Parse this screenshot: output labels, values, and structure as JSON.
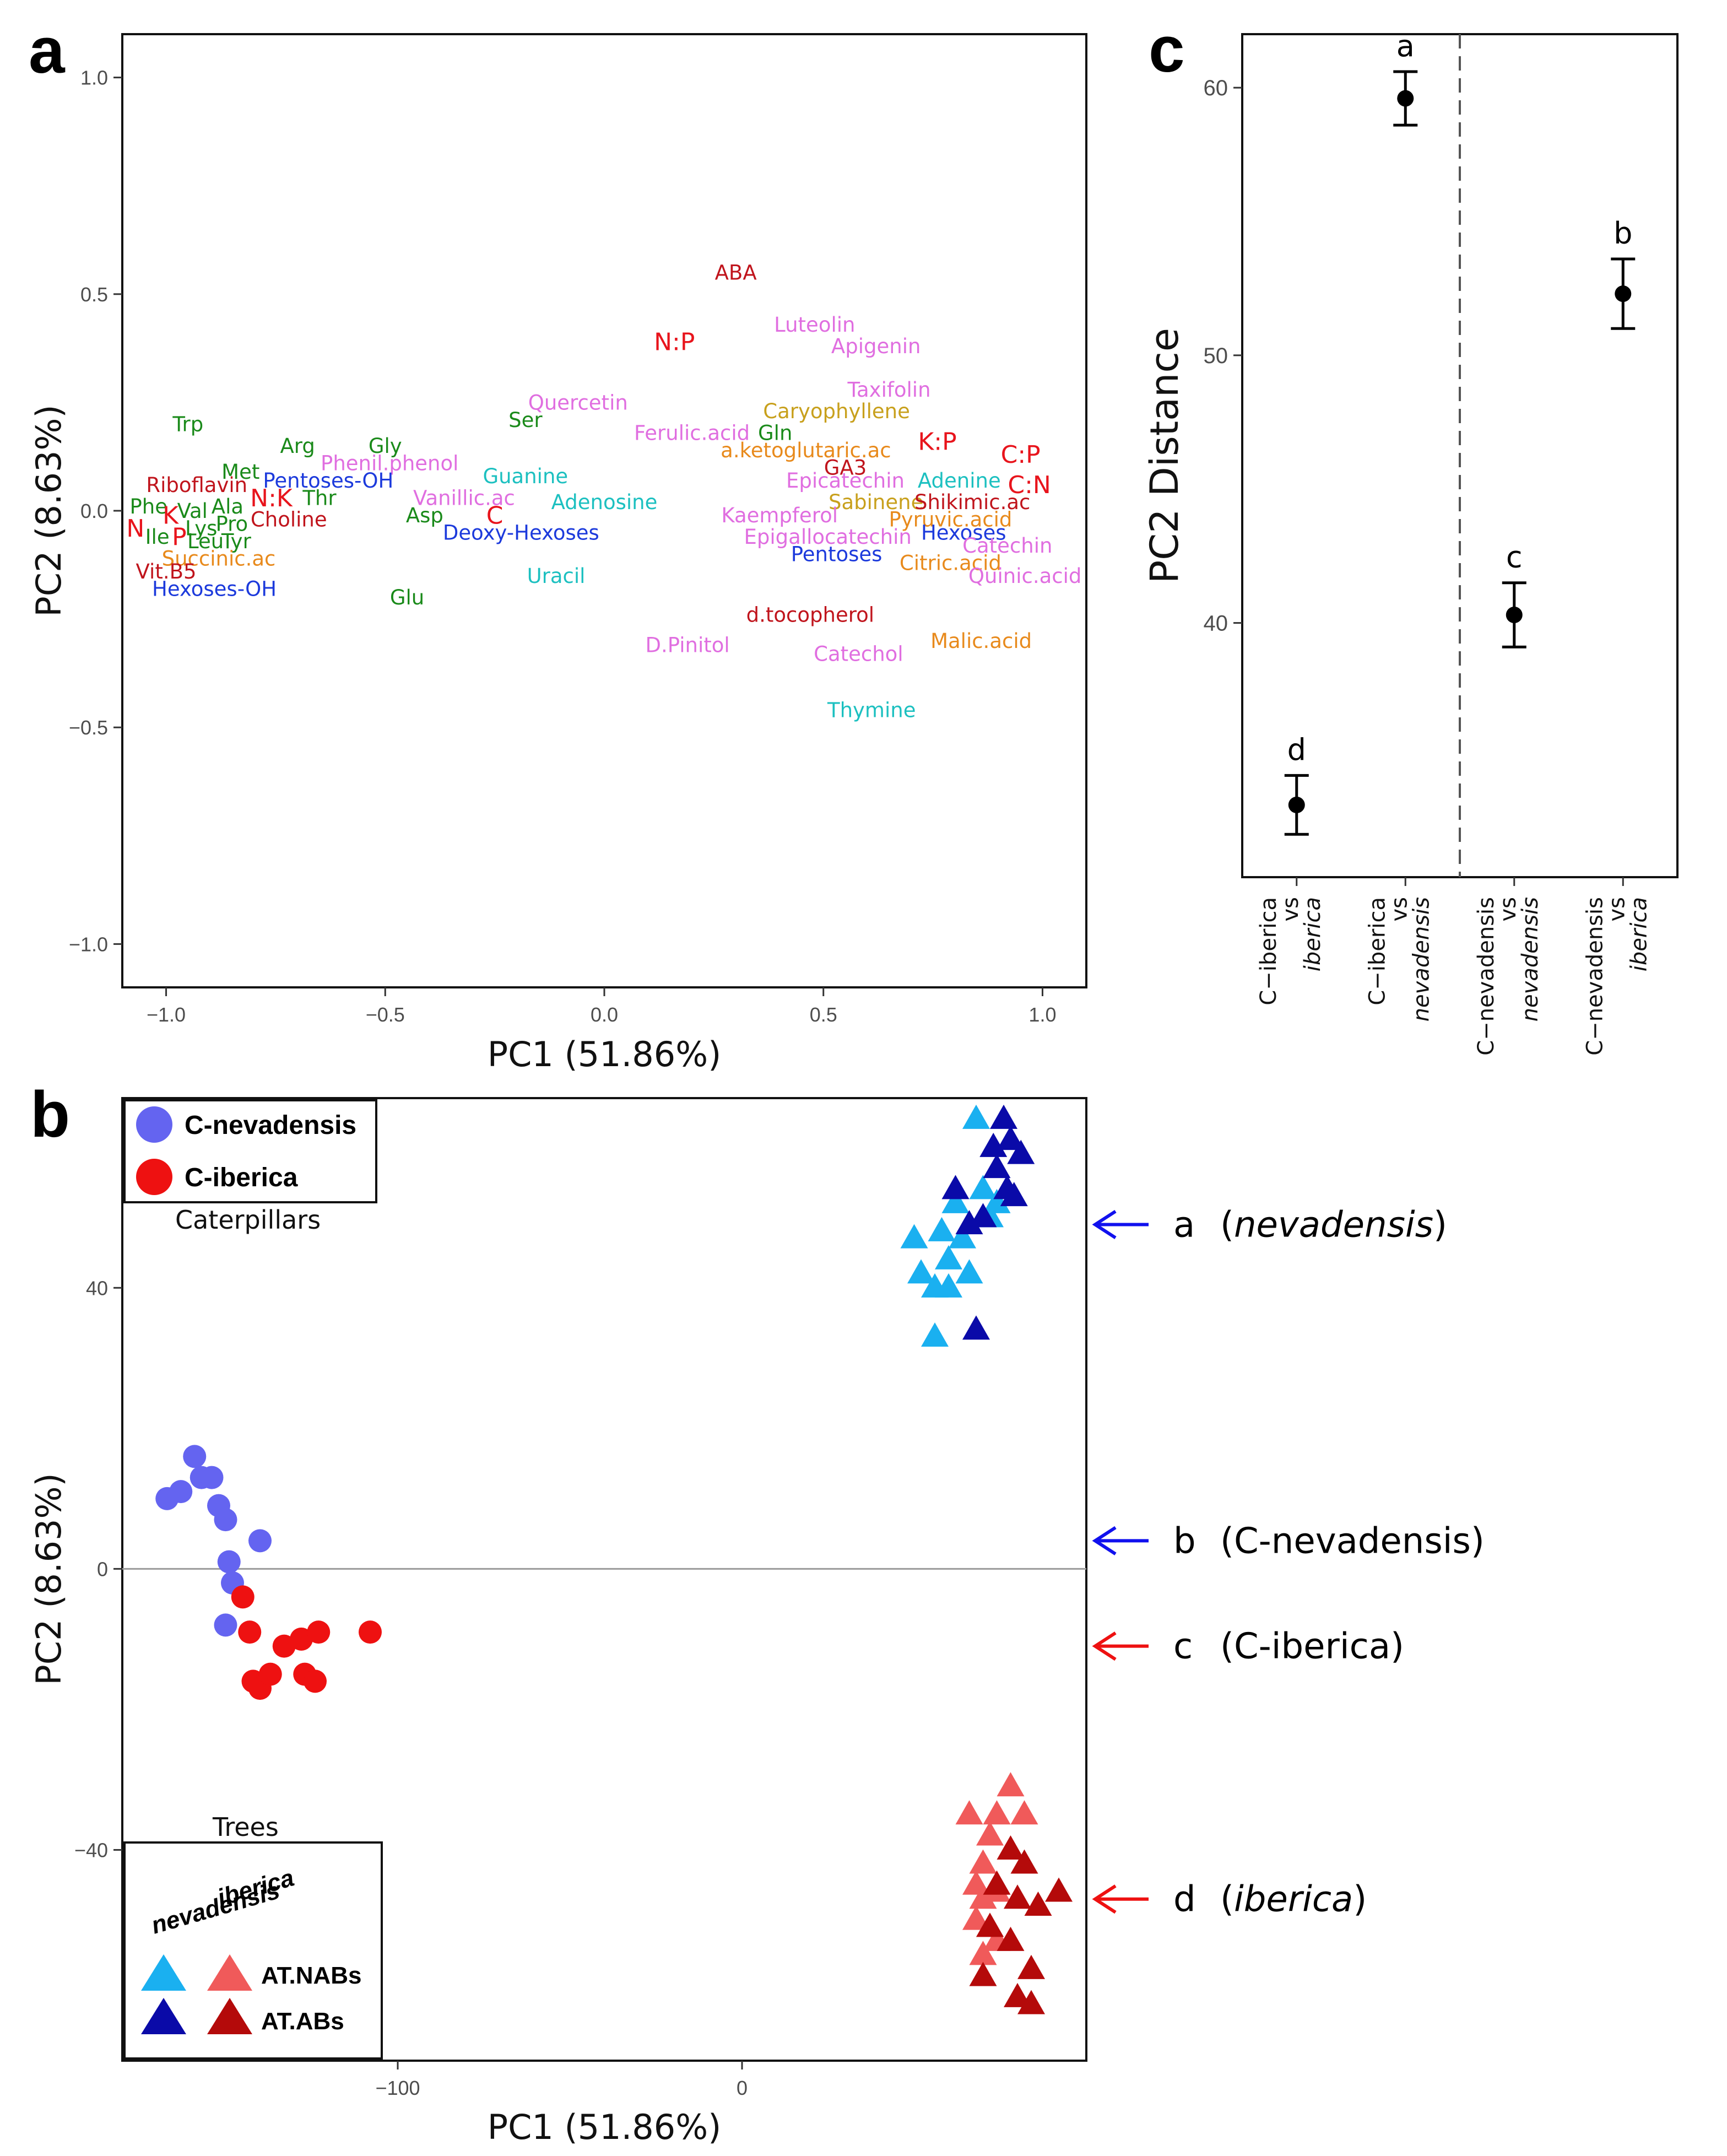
{
  "panels": {
    "a": "a",
    "b": "b",
    "c": "c"
  },
  "chart_data": [
    {
      "id": "a",
      "type": "scatter",
      "title": "",
      "xlabel": "PC1 (51.86%)",
      "ylabel": "PC2 (8.63%)",
      "xlim": [
        -1.1,
        1.1
      ],
      "ylim": [
        -1.1,
        1.1
      ],
      "xticks": [
        -1.0,
        -0.5,
        0.0,
        0.5,
        1.0
      ],
      "yticks": [
        -1.0,
        -0.5,
        0.0,
        0.5,
        1.0
      ],
      "xtick_labels": [
        "−1.0",
        "−0.5",
        "0.0",
        "0.5",
        "1.0"
      ],
      "ytick_labels": [
        "−1.0",
        "−0.5",
        "0.0",
        "0.5",
        "1.0"
      ],
      "colors": {
        "amino": "#1a8a1a",
        "nutrient": "#e8141c",
        "vitamin": "#c0141c",
        "organic": "#e88a1c",
        "sugar": "#1c3adc",
        "nucleo": "#1cc0c0",
        "phenol": "#e06ee0",
        "terpene": "#c8a01c",
        "hormone": "#c0141c"
      },
      "labels": [
        {
          "text": "ABA",
          "x": 0.3,
          "y": 0.55,
          "group": "hormone"
        },
        {
          "text": "Luteolin",
          "x": 0.48,
          "y": 0.43,
          "group": "phenol"
        },
        {
          "text": "N:P",
          "x": 0.16,
          "y": 0.39,
          "group": "nutrient"
        },
        {
          "text": "Apigenin",
          "x": 0.62,
          "y": 0.38,
          "group": "phenol"
        },
        {
          "text": "Taxifolin",
          "x": 0.65,
          "y": 0.28,
          "group": "phenol"
        },
        {
          "text": "Quercetin",
          "x": -0.06,
          "y": 0.25,
          "group": "phenol"
        },
        {
          "text": "Caryophyllene",
          "x": 0.53,
          "y": 0.23,
          "group": "terpene"
        },
        {
          "text": "Ser",
          "x": -0.18,
          "y": 0.21,
          "group": "amino"
        },
        {
          "text": "Ferulic.acid",
          "x": 0.2,
          "y": 0.18,
          "group": "phenol"
        },
        {
          "text": "Gln",
          "x": 0.39,
          "y": 0.18,
          "group": "amino"
        },
        {
          "text": "Trp",
          "x": -0.95,
          "y": 0.2,
          "group": "amino"
        },
        {
          "text": "a.ketoglutaric.ac",
          "x": 0.46,
          "y": 0.14,
          "group": "organic"
        },
        {
          "text": "K:P",
          "x": 0.76,
          "y": 0.16,
          "group": "nutrient"
        },
        {
          "text": "Arg",
          "x": -0.7,
          "y": 0.15,
          "group": "amino"
        },
        {
          "text": "Gly",
          "x": -0.5,
          "y": 0.15,
          "group": "amino"
        },
        {
          "text": "C:P",
          "x": 0.95,
          "y": 0.13,
          "group": "nutrient"
        },
        {
          "text": "GA3",
          "x": 0.55,
          "y": 0.1,
          "group": "hormone"
        },
        {
          "text": "Phenil.phenol",
          "x": -0.49,
          "y": 0.11,
          "group": "phenol"
        },
        {
          "text": "Met",
          "x": -0.83,
          "y": 0.09,
          "group": "amino"
        },
        {
          "text": "Guanine",
          "x": -0.18,
          "y": 0.08,
          "group": "nucleo"
        },
        {
          "text": "Pentoses-OH",
          "x": -0.63,
          "y": 0.07,
          "group": "sugar"
        },
        {
          "text": "Epicatechin",
          "x": 0.55,
          "y": 0.07,
          "group": "phenol"
        },
        {
          "text": "Adenine",
          "x": 0.81,
          "y": 0.07,
          "group": "nucleo"
        },
        {
          "text": "Riboflavin",
          "x": -0.93,
          "y": 0.06,
          "group": "vitamin"
        },
        {
          "text": "C:N",
          "x": 0.97,
          "y": 0.06,
          "group": "nutrient"
        },
        {
          "text": "N:K",
          "x": -0.76,
          "y": 0.03,
          "group": "nutrient"
        },
        {
          "text": "Thr",
          "x": -0.65,
          "y": 0.03,
          "group": "amino"
        },
        {
          "text": "Vanillic.ac",
          "x": -0.32,
          "y": 0.03,
          "group": "phenol"
        },
        {
          "text": "Adenosine",
          "x": 0.0,
          "y": 0.02,
          "group": "nucleo"
        },
        {
          "text": "Sabinene",
          "x": 0.62,
          "y": 0.02,
          "group": "terpene"
        },
        {
          "text": "Shikimic.ac",
          "x": 0.84,
          "y": 0.02,
          "group": "vitamin"
        },
        {
          "text": "Phe",
          "x": -1.04,
          "y": 0.01,
          "group": "amino"
        },
        {
          "text": "Val",
          "x": -0.94,
          "y": 0.0,
          "group": "amino"
        },
        {
          "text": "Ala",
          "x": -0.86,
          "y": 0.01,
          "group": "amino"
        },
        {
          "text": "K",
          "x": -0.99,
          "y": -0.01,
          "group": "nutrient"
        },
        {
          "text": "Asp",
          "x": -0.41,
          "y": -0.01,
          "group": "amino"
        },
        {
          "text": "C",
          "x": -0.25,
          "y": -0.01,
          "group": "nutrient"
        },
        {
          "text": "Kaempferol",
          "x": 0.4,
          "y": -0.01,
          "group": "phenol"
        },
        {
          "text": "Pyruvic.acid",
          "x": 0.79,
          "y": -0.02,
          "group": "organic"
        },
        {
          "text": "Choline",
          "x": -0.72,
          "y": -0.02,
          "group": "vitamin"
        },
        {
          "text": "Pro",
          "x": -0.85,
          "y": -0.03,
          "group": "amino"
        },
        {
          "text": "Lys",
          "x": -0.92,
          "y": -0.04,
          "group": "amino"
        },
        {
          "text": "N",
          "x": -1.07,
          "y": -0.04,
          "group": "nutrient"
        },
        {
          "text": "Deoxy-Hexoses",
          "x": -0.19,
          "y": -0.05,
          "group": "sugar"
        },
        {
          "text": "Ile",
          "x": -1.02,
          "y": -0.06,
          "group": "amino"
        },
        {
          "text": "P",
          "x": -0.97,
          "y": -0.06,
          "group": "nutrient"
        },
        {
          "text": "Leu",
          "x": -0.91,
          "y": -0.07,
          "group": "amino"
        },
        {
          "text": "Tyr",
          "x": -0.84,
          "y": -0.07,
          "group": "amino"
        },
        {
          "text": "Epigallocatechin",
          "x": 0.51,
          "y": -0.06,
          "group": "phenol"
        },
        {
          "text": "Hexoses",
          "x": 0.82,
          "y": -0.05,
          "group": "sugar"
        },
        {
          "text": "Catechin",
          "x": 0.92,
          "y": -0.08,
          "group": "phenol"
        },
        {
          "text": "Succinic.ac",
          "x": -0.88,
          "y": -0.11,
          "group": "organic"
        },
        {
          "text": "Pentoses",
          "x": 0.53,
          "y": -0.1,
          "group": "sugar"
        },
        {
          "text": "Citric.acid",
          "x": 0.79,
          "y": -0.12,
          "group": "organic"
        },
        {
          "text": "Vit.B5",
          "x": -1.0,
          "y": -0.14,
          "group": "vitamin"
        },
        {
          "text": "Quinic.acid",
          "x": 0.96,
          "y": -0.15,
          "group": "phenol"
        },
        {
          "text": "Uracil",
          "x": -0.11,
          "y": -0.15,
          "group": "nucleo"
        },
        {
          "text": "Hexoses-OH",
          "x": -0.89,
          "y": -0.18,
          "group": "sugar"
        },
        {
          "text": "Glu",
          "x": -0.45,
          "y": -0.2,
          "group": "amino"
        },
        {
          "text": "d.tocopherol",
          "x": 0.47,
          "y": -0.24,
          "group": "vitamin"
        },
        {
          "text": "D.Pinitol",
          "x": 0.19,
          "y": -0.31,
          "group": "phenol"
        },
        {
          "text": "Malic.acid",
          "x": 0.86,
          "y": -0.3,
          "group": "organic"
        },
        {
          "text": "Catechol",
          "x": 0.58,
          "y": -0.33,
          "group": "phenol"
        },
        {
          "text": "Thymine",
          "x": 0.61,
          "y": -0.46,
          "group": "nucleo"
        }
      ]
    },
    {
      "id": "b",
      "type": "scatter",
      "xlabel": "PC1 (51.86%)",
      "ylabel": "PC2 (8.63%)",
      "xlim": [
        -180,
        100
      ],
      "ylim": [
        -70,
        67
      ],
      "xticks": [
        -100,
        0
      ],
      "yticks": [
        -40,
        0,
        40
      ],
      "xtick_labels": [
        "−100",
        "0"
      ],
      "ytick_labels": [
        "−40",
        "0",
        "40"
      ],
      "hline_y": 0,
      "caterpillar_legend": {
        "title": "Caterpillars",
        "items": [
          {
            "label": "C-nevadensis",
            "color": "#6464f0"
          },
          {
            "label": "C-iberica",
            "color": "#ee1111"
          }
        ]
      },
      "tree_legend": {
        "title": "Trees",
        "col_labels": [
          "nevadensis",
          "iberica"
        ],
        "row_labels": [
          "AT.NABs",
          "AT.ABs"
        ],
        "colors": {
          "nev_nab": "#1ab0f0",
          "nev_ab": "#0a0aa8",
          "ibe_nab": "#f05a5a",
          "ibe_ab": "#b40a0a"
        }
      },
      "series": [
        {
          "name": "C-nevadensis",
          "shape": "circle",
          "color": "#6464f0",
          "points": [
            [
              -167,
              10
            ],
            [
              -159,
              16
            ],
            [
              -163,
              11
            ],
            [
              -157,
              13
            ],
            [
              -154,
              13
            ],
            [
              -152,
              9
            ],
            [
              -150,
              7
            ],
            [
              -149,
              1
            ],
            [
              -148,
              -2
            ],
            [
              -150,
              -8
            ],
            [
              -140,
              4
            ]
          ]
        },
        {
          "name": "C-iberica",
          "shape": "circle",
          "color": "#ee1111",
          "points": [
            [
              -145,
              -4
            ],
            [
              -143,
              -9
            ],
            [
              -133,
              -11
            ],
            [
              -128,
              -10
            ],
            [
              -123,
              -9
            ],
            [
              -108,
              -9
            ],
            [
              -142,
              -16
            ],
            [
              -140,
              -17
            ],
            [
              -137,
              -15
            ],
            [
              -127,
              -15
            ],
            [
              -124,
              -16
            ]
          ]
        },
        {
          "name": "nevadensis AT.NABs",
          "shape": "triangle",
          "color": "#1ab0f0",
          "points": [
            [
              68,
              64
            ],
            [
              70,
              54
            ],
            [
              62,
              52
            ],
            [
              74,
              52
            ],
            [
              58,
              48
            ],
            [
              64,
              47
            ],
            [
              72,
              50
            ],
            [
              50,
              47
            ],
            [
              60,
              44
            ],
            [
              66,
              42
            ],
            [
              52,
              42
            ],
            [
              56,
              40
            ],
            [
              60,
              40
            ],
            [
              56,
              33
            ]
          ]
        },
        {
          "name": "nevadensis AT.ABs",
          "shape": "triangle",
          "color": "#0a0aa8",
          "points": [
            [
              76,
              64
            ],
            [
              78,
              61
            ],
            [
              73,
              60
            ],
            [
              81,
              59
            ],
            [
              74,
              57
            ],
            [
              77,
              54
            ],
            [
              79,
              53
            ],
            [
              62,
              54
            ],
            [
              70,
              50
            ],
            [
              66,
              49
            ],
            [
              68,
              34
            ]
          ]
        },
        {
          "name": "iberica AT.NABs",
          "shape": "triangle",
          "color": "#f05a5a",
          "points": [
            [
              78,
              -31
            ],
            [
              74,
              -35
            ],
            [
              66,
              -35
            ],
            [
              82,
              -35
            ],
            [
              72,
              -38
            ],
            [
              70,
              -42
            ],
            [
              68,
              -45
            ],
            [
              74,
              -46
            ],
            [
              70,
              -47
            ],
            [
              68,
              -50
            ],
            [
              72,
              -51
            ],
            [
              74,
              -53
            ],
            [
              70,
              -55
            ]
          ]
        },
        {
          "name": "iberica AT.ABs",
          "shape": "triangle",
          "color": "#b40a0a",
          "points": [
            [
              78,
              -40
            ],
            [
              82,
              -42
            ],
            [
              74,
              -45
            ],
            [
              92,
              -46
            ],
            [
              80,
              -47
            ],
            [
              86,
              -48
            ],
            [
              72,
              -51
            ],
            [
              78,
              -53
            ],
            [
              84,
              -57
            ],
            [
              70,
              -58
            ],
            [
              80,
              -61
            ],
            [
              84,
              -62
            ]
          ]
        }
      ],
      "annotations": [
        {
          "letter": "a",
          "text": "nevadensis",
          "italic": true,
          "y": 49,
          "arrow_color": "#1111ee"
        },
        {
          "letter": "b",
          "text": "C-nevadensis",
          "italic": false,
          "y": 4,
          "arrow_color": "#1111ee"
        },
        {
          "letter": "c",
          "text": "C-iberica",
          "italic": false,
          "y": -11,
          "arrow_color": "#ee1111"
        },
        {
          "letter": "d",
          "text": "iberica",
          "italic": true,
          "y": -47,
          "arrow_color": "#ee1111"
        }
      ]
    },
    {
      "id": "c",
      "type": "errorbar",
      "ylabel": "PC2 Distance",
      "ylim": [
        30.5,
        62
      ],
      "yticks": [
        40,
        50,
        60
      ],
      "ytick_labels": [
        "40",
        "50",
        "60"
      ],
      "vline_between": [
        2,
        3
      ],
      "categories": [
        {
          "first": "C−iberica",
          "vs": "vs",
          "second": "iberica"
        },
        {
          "first": "C−iberica",
          "vs": "vs",
          "second": "nevadensis"
        },
        {
          "first": "C−nevadensis",
          "vs": "vs",
          "second": "nevadensis"
        },
        {
          "first": "C−nevadensis",
          "vs": "vs",
          "second": "iberica"
        }
      ],
      "values": [
        33.2,
        59.6,
        40.3,
        52.3
      ],
      "errors": [
        1.1,
        1.0,
        1.2,
        1.3
      ],
      "letters": [
        "d",
        "a",
        "c",
        "b"
      ]
    }
  ]
}
